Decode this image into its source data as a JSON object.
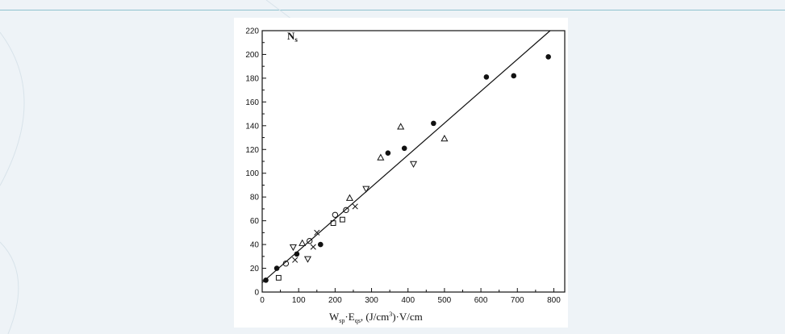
{
  "chart_data": {
    "type": "scatter",
    "title": "",
    "ylabel": "N",
    "ylabel_sub": "s",
    "xlabel": {
      "w": "W",
      "w_sub": "sp",
      "dot1": "·E",
      "e_sub": "qs",
      "units_open": ", (J/cm",
      "units_sup": "3",
      "units_close": ")·V/cm"
    },
    "xlim": [
      0,
      830
    ],
    "ylim": [
      0,
      220
    ],
    "x_ticks": [
      "0",
      "100",
      "200",
      "300",
      "400",
      "500",
      "600",
      "700",
      "800"
    ],
    "y_ticks": [
      "0",
      "20",
      "40",
      "60",
      "80",
      "100",
      "120",
      "140",
      "160",
      "180",
      "200",
      "220"
    ],
    "grid": false,
    "legend": "none",
    "fit_line": {
      "x": [
        0,
        790
      ],
      "y": [
        8,
        220
      ]
    },
    "series": [
      {
        "marker": "filled-circle",
        "points": [
          [
            10,
            10
          ],
          [
            40,
            20
          ],
          [
            95,
            32
          ],
          [
            160,
            40
          ],
          [
            345,
            117
          ],
          [
            390,
            121
          ],
          [
            470,
            142
          ],
          [
            615,
            181
          ],
          [
            690,
            182
          ],
          [
            785,
            198
          ]
        ]
      },
      {
        "marker": "triangle-up",
        "points": [
          [
            110,
            41
          ],
          [
            240,
            79
          ],
          [
            325,
            113
          ],
          [
            380,
            139
          ],
          [
            500,
            129
          ]
        ]
      },
      {
        "marker": "triangle-down",
        "points": [
          [
            85,
            38
          ],
          [
            125,
            28
          ],
          [
            285,
            87
          ],
          [
            415,
            108
          ]
        ]
      },
      {
        "marker": "cross",
        "points": [
          [
            90,
            27
          ],
          [
            140,
            38
          ],
          [
            150,
            50
          ],
          [
            255,
            72
          ]
        ]
      },
      {
        "marker": "circle",
        "points": [
          [
            65,
            24
          ],
          [
            130,
            43
          ],
          [
            200,
            65
          ],
          [
            230,
            69
          ]
        ]
      },
      {
        "marker": "square",
        "points": [
          [
            45,
            12
          ],
          [
            195,
            58
          ],
          [
            220,
            61
          ]
        ]
      }
    ]
  }
}
